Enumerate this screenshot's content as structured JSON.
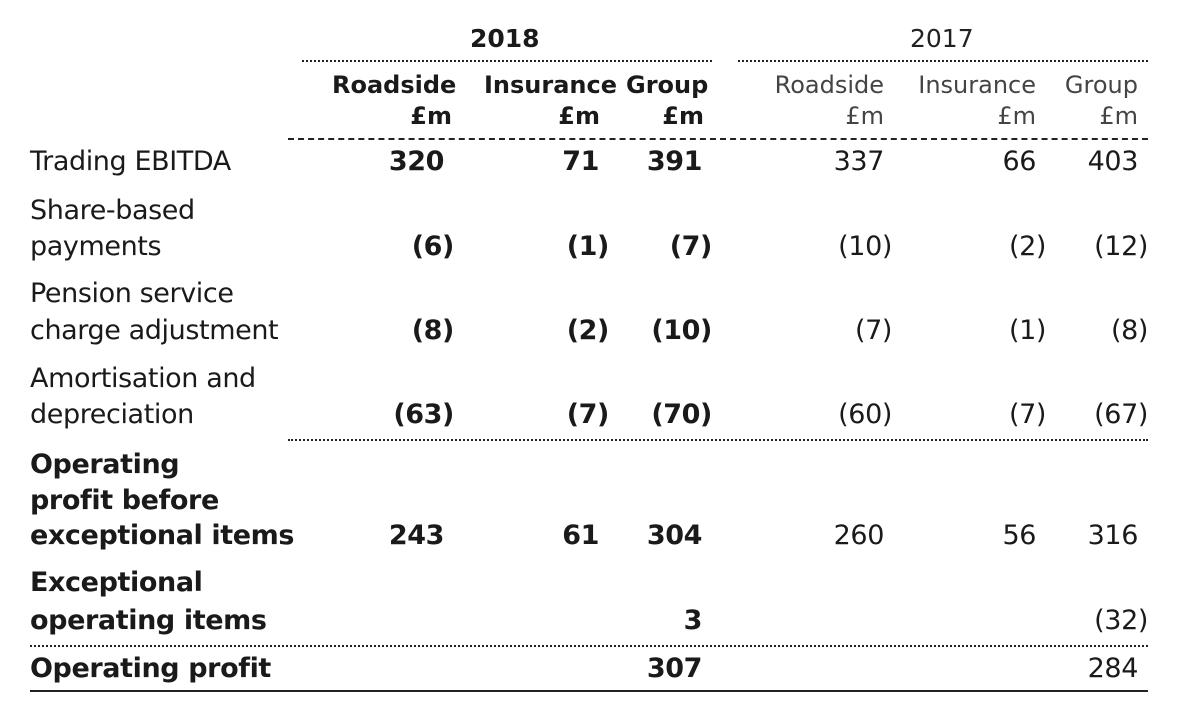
{
  "years": {
    "y2018": "2018",
    "y2017": "2017"
  },
  "headers": {
    "y2018": [
      {
        "line1": "Roadside",
        "line2": "£m"
      },
      {
        "line1": "Insurance",
        "line2": "£m"
      },
      {
        "line1": "Group",
        "line2": "£m"
      }
    ],
    "y2017": [
      {
        "line1": "Roadside",
        "line2": "£m"
      },
      {
        "line1": "Insurance",
        "line2": "£m"
      },
      {
        "line1": "Group",
        "line2": "£m"
      }
    ]
  },
  "rows": [
    {
      "label": [
        "Trading EBITDA"
      ],
      "values": [
        "320",
        "71",
        "391",
        "337",
        "66",
        "403"
      ]
    },
    {
      "label": [
        "Share-based",
        "payments"
      ],
      "values": [
        "(6)",
        "(1)",
        "(7)",
        "(10)",
        "(2)",
        "(12)"
      ]
    },
    {
      "label": [
        "Pension service",
        "charge adjustment"
      ],
      "values": [
        "(8)",
        "(2)",
        "(10)",
        "(7)",
        "(1)",
        "(8)"
      ]
    },
    {
      "label": [
        "Amortisation and",
        "depreciation"
      ],
      "values": [
        "(63)",
        "(7)",
        "(70)",
        "(60)",
        "(7)",
        "(67)"
      ]
    },
    {
      "label": [
        "Operating",
        "profit before",
        "exceptional items"
      ],
      "values": [
        "243",
        "61",
        "304",
        "260",
        "56",
        "316"
      ]
    },
    {
      "label": [
        "Exceptional",
        "operating items"
      ],
      "values": [
        "",
        "",
        "3",
        "",
        "",
        "(32)"
      ]
    },
    {
      "label": [
        "Operating profit"
      ],
      "values": [
        "",
        "",
        "307",
        "",
        "",
        "284"
      ]
    }
  ]
}
